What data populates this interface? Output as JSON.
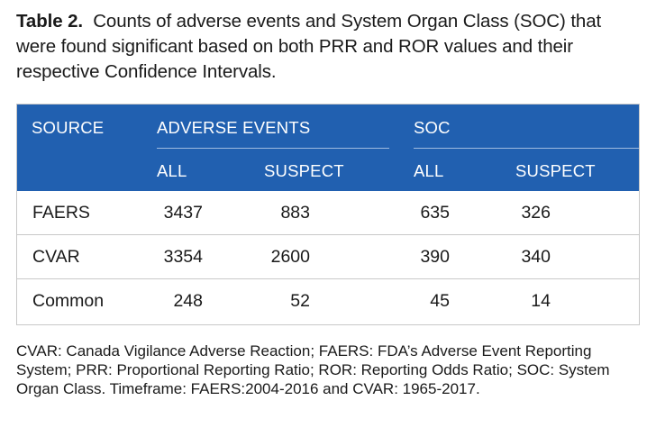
{
  "caption": {
    "label": "Table 2.",
    "text": "Counts of adverse events and System Organ Class (SOC) that were found significant based on both PRR and ROR values and their respective Confidence Intervals."
  },
  "table": {
    "headers": {
      "source": "SOURCE",
      "adverse_events": "ADVERSE EVENTS",
      "soc": "SOC",
      "ae_all": "ALL",
      "ae_suspect": "SUSPECT",
      "soc_all": "ALL",
      "soc_suspect": "SUSPECT"
    },
    "rows": [
      {
        "source": "FAERS",
        "ae_all": "3437",
        "ae_suspect": "883",
        "soc_all": "635",
        "soc_suspect": "326"
      },
      {
        "source": "CVAR",
        "ae_all": "3354",
        "ae_suspect": "2600",
        "soc_all": "390",
        "soc_suspect": "340"
      },
      {
        "source": "Common",
        "ae_all": "248",
        "ae_suspect": "52",
        "soc_all": "45",
        "soc_suspect": "14"
      }
    ]
  },
  "footnote": "CVAR: Canada Vigilance Adverse Reaction; FAERS: FDA’s Adverse Event Reporting System; PRR: Proportional Reporting Ratio; ROR: Reporting Odds Ratio; SOC: System Organ Class. Timeframe: FAERS:2004-2016 and CVAR: 1965-2017.",
  "colors": {
    "header_bg": "#2160b0",
    "header_text": "#ffffff",
    "border": "#c8c8c8"
  }
}
